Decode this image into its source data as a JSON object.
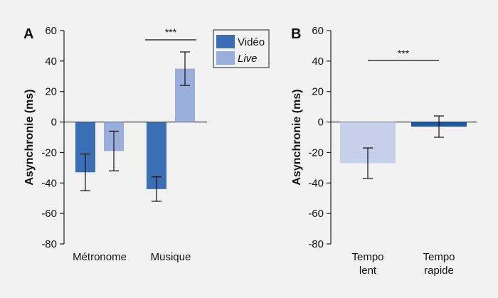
{
  "chart_data": [
    {
      "panel": "A",
      "type": "bar",
      "ylabel": "Asynchronie (ms)",
      "ylim": [
        -80,
        60
      ],
      "yticks": [
        "60",
        "40",
        "20",
        "0",
        "-20",
        "-40",
        "-60",
        "-80"
      ],
      "categories": [
        "Métronome",
        "Musique"
      ],
      "series": [
        {
          "name": "Vidéo",
          "color": "#3a6eb5",
          "values": [
            -33,
            -44
          ],
          "error": [
            12,
            8
          ]
        },
        {
          "name": "Live",
          "color": "#9aaedb",
          "values": [
            -19,
            35
          ],
          "error": [
            13,
            11
          ]
        }
      ],
      "annotations": [
        {
          "text": "***",
          "category": "Musique"
        }
      ],
      "legend": {
        "placement": "top-right"
      }
    },
    {
      "panel": "B",
      "type": "bar",
      "ylabel": "Asynchronie (ms)",
      "ylim": [
        -80,
        60
      ],
      "yticks": [
        "60",
        "40",
        "20",
        "0",
        "-20",
        "-40",
        "-60",
        "-80"
      ],
      "categories": [
        [
          "Tempo",
          "lent"
        ],
        [
          "Tempo",
          "rapide"
        ]
      ],
      "values": [
        -27,
        -3
      ],
      "error": [
        10,
        7
      ],
      "colors": [
        "#c7d0ea",
        "#1c5aa8"
      ],
      "annotations": [
        {
          "text": "***",
          "span": "between-categories"
        }
      ]
    }
  ]
}
